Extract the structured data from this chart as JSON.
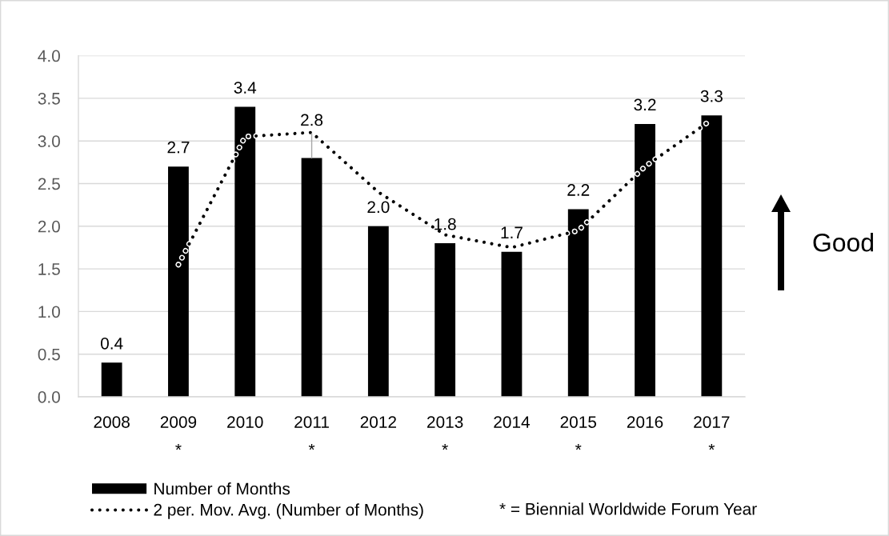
{
  "chart_data": {
    "type": "bar",
    "categories": [
      "2008",
      "2009\n*",
      "2010",
      "2011\n*",
      "2012",
      "2013\n*",
      "2014",
      "2015\n*",
      "2016",
      "2017\n*"
    ],
    "series": [
      {
        "name": "Number of Months",
        "color": "#000000",
        "values": [
          0.4,
          2.7,
          3.4,
          2.8,
          2.0,
          1.8,
          1.7,
          2.2,
          3.2,
          3.3
        ],
        "value_labels": [
          "0.4",
          "2.7",
          "3.4",
          "2.8",
          "2.0",
          "1.8",
          "1.7",
          "2.2",
          "3.2",
          "3.3"
        ]
      },
      {
        "name": "2 per. Mov. Avg. (Number of Months)",
        "type": "line",
        "color": "#000000",
        "line_style": "dotted",
        "values": [
          null,
          1.55,
          3.05,
          3.1,
          2.4,
          1.9,
          1.75,
          1.95,
          2.7,
          3.25
        ]
      }
    ],
    "ylim": [
      0,
      4
    ],
    "yticks": [
      {
        "value": 0,
        "label": "0.0"
      },
      {
        "value": 0.5,
        "label": "0.5"
      },
      {
        "value": 1,
        "label": "1.0"
      },
      {
        "value": 1.5,
        "label": "1.5"
      },
      {
        "value": 2,
        "label": "2.0"
      },
      {
        "value": 2.5,
        "label": "2.5"
      },
      {
        "value": 3,
        "label": "3.0"
      },
      {
        "value": 3.5,
        "label": "3.5"
      },
      {
        "value": 4,
        "label": "4.0"
      }
    ],
    "grid": "y",
    "legend": "bottom left",
    "annotations": [
      "Good",
      "* = Biennial Worldwide Forum Year"
    ]
  }
}
